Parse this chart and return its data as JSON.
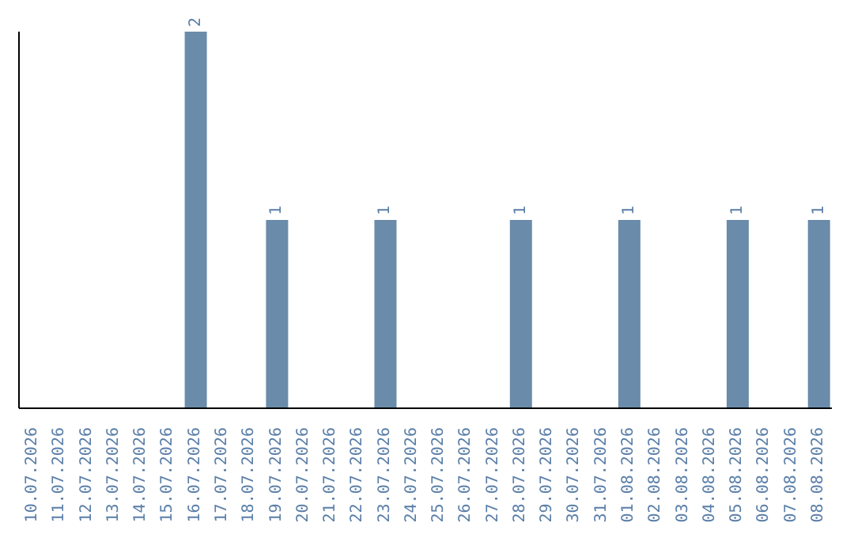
{
  "chart_data": {
    "type": "bar",
    "categories": [
      "10.07.2026",
      "11.07.2026",
      "12.07.2026",
      "13.07.2026",
      "14.07.2026",
      "15.07.2026",
      "16.07.2026",
      "17.07.2026",
      "18.07.2026",
      "19.07.2026",
      "20.07.2026",
      "21.07.2026",
      "22.07.2026",
      "23.07.2026",
      "24.07.2026",
      "25.07.2026",
      "26.07.2026",
      "27.07.2026",
      "28.07.2026",
      "29.07.2026",
      "30.07.2026",
      "31.07.2026",
      "01.08.2026",
      "02.08.2026",
      "03.08.2026",
      "04.08.2026",
      "05.08.2026",
      "06.08.2026",
      "07.08.2026",
      "08.08.2026"
    ],
    "values": [
      0,
      0,
      0,
      0,
      0,
      0,
      2,
      0,
      0,
      1,
      0,
      0,
      0,
      1,
      0,
      0,
      0,
      0,
      1,
      0,
      0,
      0,
      1,
      0,
      0,
      0,
      1,
      0,
      0,
      1
    ],
    "value_labels": [
      null,
      null,
      null,
      null,
      null,
      null,
      "2",
      null,
      null,
      "1",
      null,
      null,
      null,
      "1",
      null,
      null,
      null,
      null,
      "1",
      null,
      null,
      null,
      "1",
      null,
      null,
      null,
      "1",
      null,
      null,
      "1"
    ],
    "color": "#6a8caa",
    "tick_labels": "x",
    "grid": false
  }
}
